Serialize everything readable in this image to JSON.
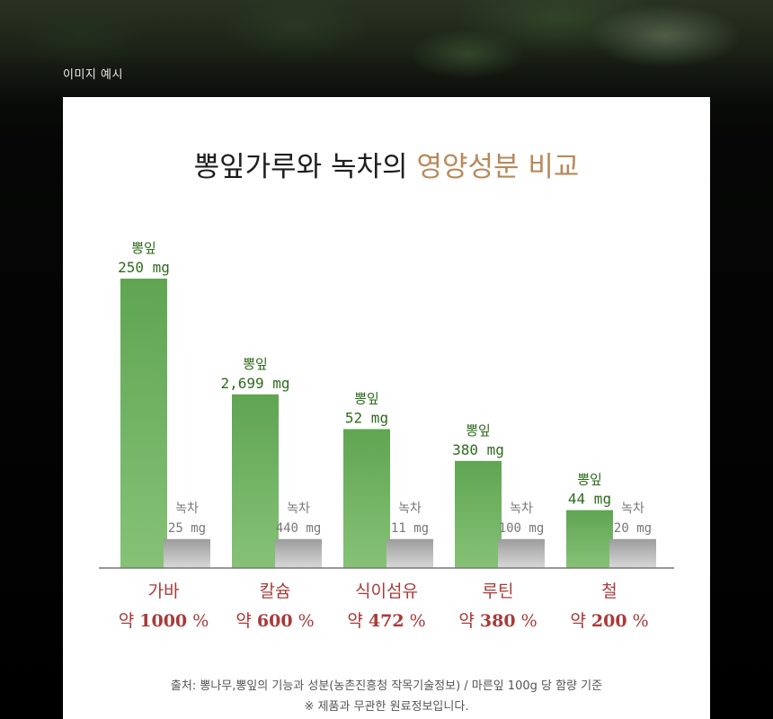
{
  "caption": "이미지 예시",
  "title": {
    "main": "뽕잎가루와 녹차의",
    "highlight": "영양성분 비교"
  },
  "chart_data": {
    "type": "bar",
    "categories": [
      "가바",
      "칼슘",
      "식이섬유",
      "루틴",
      "철"
    ],
    "series": [
      {
        "name": "뽕잎",
        "labels": [
          "250 mg",
          "2,699 mg",
          "52 mg",
          "380 mg",
          "44 mg"
        ],
        "level": [
          1.0,
          0.6,
          0.48,
          0.37,
          0.2
        ]
      },
      {
        "name": "녹차",
        "labels": [
          "25 mg",
          "440 mg",
          "11 mg",
          "100 mg",
          "20 mg"
        ],
        "level": [
          0.1,
          0.1,
          0.1,
          0.1,
          0.1
        ]
      }
    ],
    "ratio_prefix": "약",
    "ratios": [
      "1000",
      "600",
      "472",
      "380",
      "200"
    ],
    "ratio_unit": "%",
    "colors": {
      "mulberry": "#66aa5a",
      "green_tea": "#b5b5b5",
      "category": "#a93a3a",
      "value_text": "#2f6b1e",
      "tea_text": "#777777",
      "highlight": "#b8895a"
    }
  },
  "footnote": {
    "source": "출처: 뽕나무,뽕잎의 기능과 성분(농촌진흥청 작목기술정보) / 마른잎 100g 당 함량 기준",
    "disclaimer": "※ 제품과 무관한 원료정보입니다."
  }
}
